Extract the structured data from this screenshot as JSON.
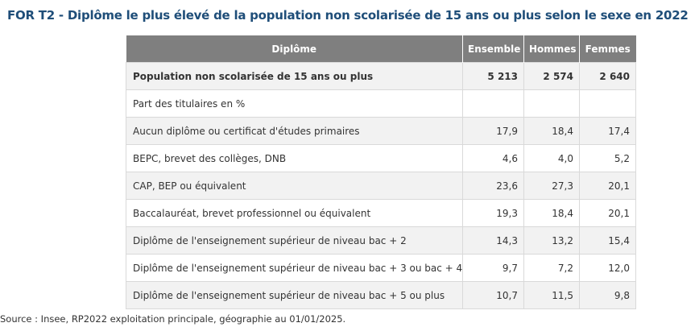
{
  "title": "FOR T2 - Diplôme le plus élevé de la population non scolarisée de 15 ans ou plus selon le sexe en 2022",
  "table": {
    "headers": [
      "Diplôme",
      "Ensemble",
      "Hommes",
      "Femmes"
    ],
    "rows": [
      {
        "label": "Population non scolarisée de 15 ans ou plus",
        "ensemble": "5 213",
        "hommes": "2 574",
        "femmes": "2 640"
      },
      {
        "label": "Part des titulaires en %",
        "ensemble": "",
        "hommes": "",
        "femmes": ""
      },
      {
        "label": "Aucun diplôme ou certificat d'études primaires",
        "ensemble": "17,9",
        "hommes": "18,4",
        "femmes": "17,4"
      },
      {
        "label": "BEPC, brevet des collèges, DNB",
        "ensemble": "4,6",
        "hommes": "4,0",
        "femmes": "5,2"
      },
      {
        "label": "CAP, BEP ou équivalent",
        "ensemble": "23,6",
        "hommes": "27,3",
        "femmes": "20,1"
      },
      {
        "label": "Baccalauréat, brevet professionnel ou équivalent",
        "ensemble": "19,3",
        "hommes": "18,4",
        "femmes": "20,1"
      },
      {
        "label": "Diplôme de l'enseignement supérieur de niveau bac + 2",
        "ensemble": "14,3",
        "hommes": "13,2",
        "femmes": "15,4"
      },
      {
        "label": "Diplôme de l'enseignement supérieur de niveau bac + 3 ou bac + 4",
        "ensemble": "9,7",
        "hommes": "7,2",
        "femmes": "12,0"
      },
      {
        "label": "Diplôme de l'enseignement supérieur de niveau bac + 5 ou plus",
        "ensemble": "10,7",
        "hommes": "11,5",
        "femmes": "9,8"
      }
    ]
  },
  "source": "Source : Insee, RP2022 exploitation principale, géographie au 01/01/2025.",
  "colors": {
    "title": "#1f4e79",
    "header_bg": "#7f7f7f",
    "row_alt_bg": "#f2f2f2",
    "border": "#d9d9d9"
  }
}
